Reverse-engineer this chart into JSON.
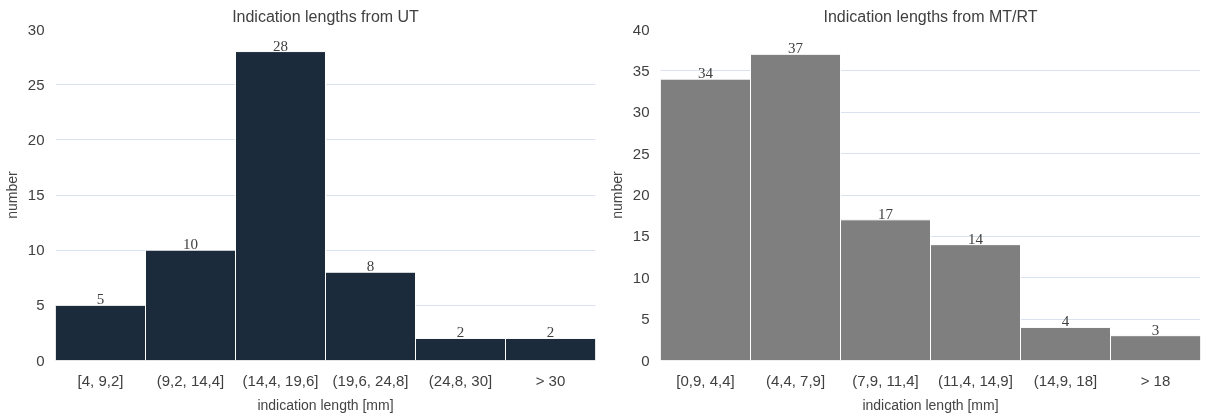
{
  "chart_data": [
    {
      "type": "bar",
      "title": "Indication lengths from UT",
      "xlabel": "indication length [mm]",
      "ylabel": "number",
      "categories": [
        "[4, 9,2]",
        "(9,2, 14,4]",
        "(14,4, 19,6]",
        "(19,6, 24,8]",
        "(24,8, 30]",
        "> 30"
      ],
      "values": [
        5,
        10,
        28,
        8,
        2,
        2
      ],
      "color": "#1c2b3b",
      "ylim": [
        0,
        30
      ],
      "yticks": [
        0,
        5,
        10,
        15,
        20,
        25,
        30
      ],
      "grid": "y",
      "data_labels": true
    },
    {
      "type": "bar",
      "title": "Indication lengths from MT/RT",
      "xlabel": "indication length [mm]",
      "ylabel": "number",
      "categories": [
        "[0,9, 4,4]",
        "(4,4, 7,9]",
        "(7,9, 11,4]",
        "(11,4, 14,9]",
        "(14,9, 18]",
        "> 18"
      ],
      "values": [
        34,
        37,
        17,
        14,
        4,
        3
      ],
      "color": "#7f7f7f",
      "ylim": [
        0,
        40
      ],
      "yticks": [
        0,
        5,
        10,
        15,
        20,
        25,
        30,
        35,
        40
      ],
      "grid": "y",
      "data_labels": true
    }
  ]
}
